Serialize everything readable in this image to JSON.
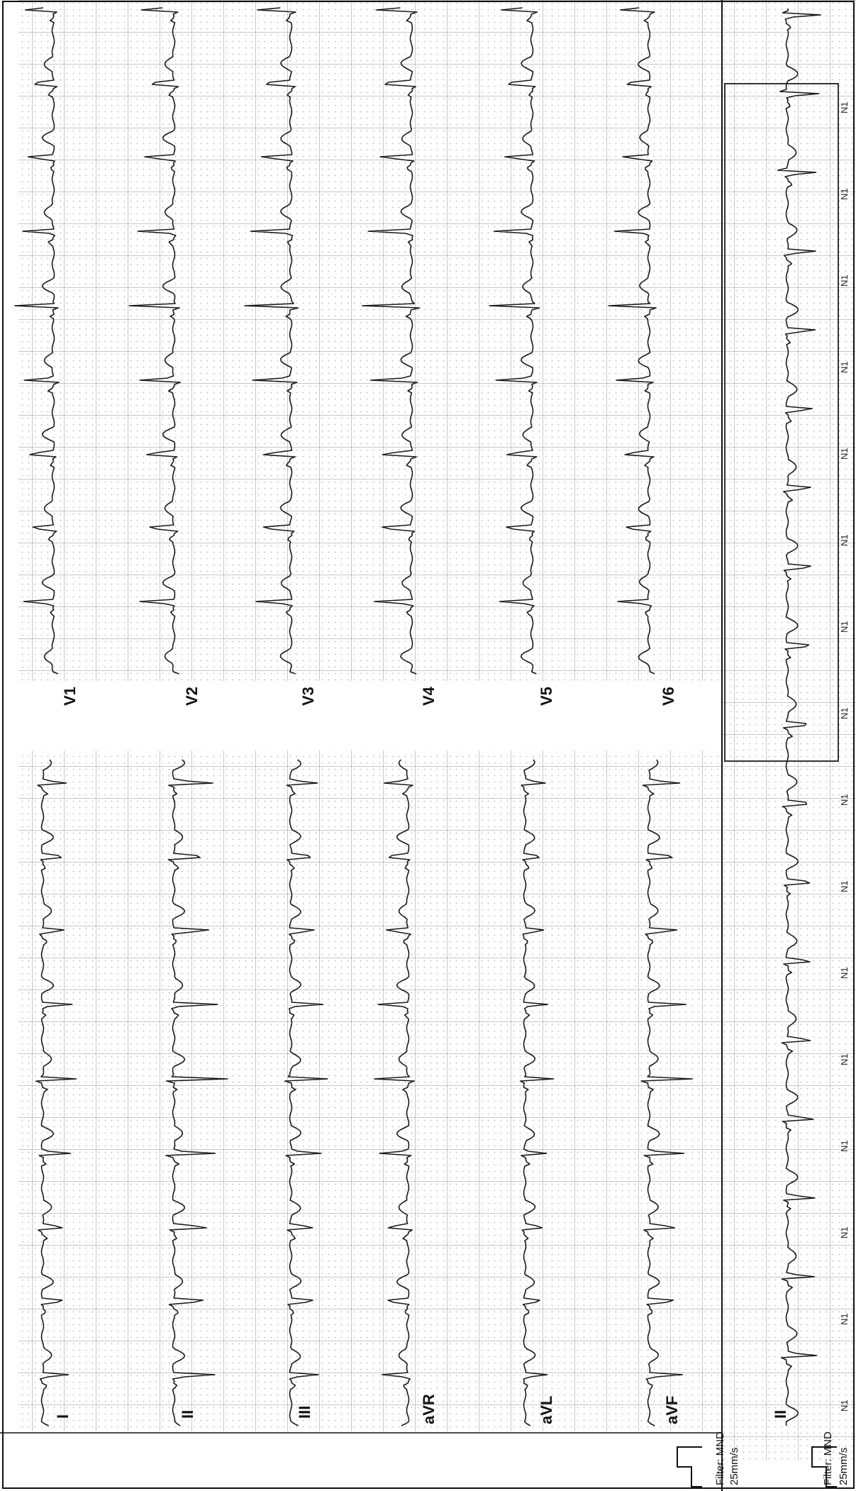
{
  "orientation": "rotated-90-ccw",
  "colors": {
    "paper": "#ffffff",
    "grid_minor": "#c4c4c4",
    "grid_major": "#8f8f8f",
    "trace": "#1a1a1a",
    "frame": "#111111"
  },
  "leads": {
    "limb": [
      "I",
      "II",
      "III",
      "aVR",
      "aVL",
      "aVF"
    ],
    "chest": [
      "V1",
      "V2",
      "V3",
      "V4",
      "V5",
      "V6"
    ],
    "rhythm": "II"
  },
  "footer": {
    "filter_top": "Filter: MND",
    "speed_top": "25mm/s",
    "filter_bottom": "Filter: MND",
    "speed_bottom": "25mm/s"
  },
  "beat_label": "N1",
  "beat_labels_count": 16
}
